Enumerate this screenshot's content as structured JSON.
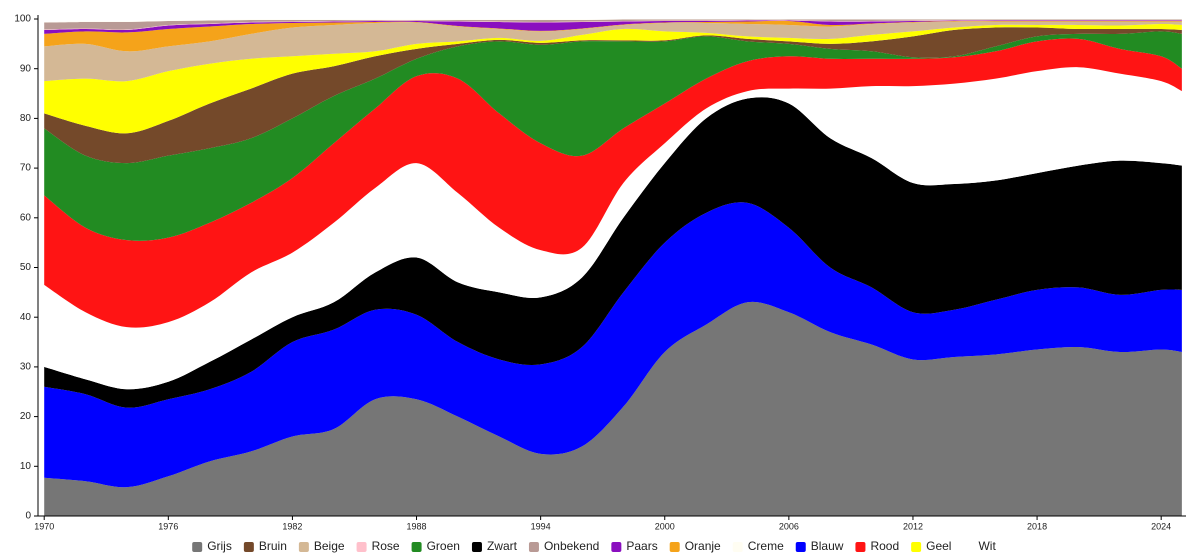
{
  "chart_data": {
    "type": "stacked-area",
    "x": [
      1970,
      1972,
      1974,
      1976,
      1978,
      1980,
      1982,
      1984,
      1986,
      1988,
      1990,
      1992,
      1994,
      1996,
      1998,
      2000,
      2002,
      2004,
      2006,
      2008,
      2010,
      2012,
      2014,
      2016,
      2018,
      2020,
      2022,
      2024,
      2025
    ],
    "xlim": [
      1969.7,
      2025.2
    ],
    "xticks": [
      1970,
      1976,
      1982,
      1988,
      1994,
      2000,
      2006,
      2012,
      2018,
      2024
    ],
    "ylim": [
      0,
      100
    ],
    "yticks": [
      0,
      10,
      20,
      30,
      40,
      50,
      60,
      70,
      80,
      90,
      100
    ],
    "grid": false,
    "legend": "bottom",
    "series": [
      {
        "name": "Grijs",
        "color": "#767676",
        "values": [
          7.7,
          7,
          5.8,
          8,
          11,
          13,
          16,
          17.5,
          23.5,
          23.5,
          20,
          16,
          12.5,
          14,
          22,
          33,
          38.5,
          43,
          41,
          37,
          34.5,
          31.5,
          32,
          32.5,
          33.5,
          34,
          33,
          33.5,
          33
        ]
      },
      {
        "name": "Bruin",
        "color": "#74492a",
        "values": [
          3,
          6,
          6,
          7,
          9,
          10,
          9,
          6,
          4.5,
          2,
          0.5,
          0.3,
          0.4,
          0.2,
          0.2,
          0.2,
          0.2,
          0.5,
          0.5,
          1,
          2,
          4.2,
          5.3,
          3.8,
          1.8,
          1,
          1,
          0.5,
          0.8
        ]
      },
      {
        "name": "Beige",
        "color": "#d4b895",
        "values": [
          7,
          7,
          6,
          5,
          4.5,
          5,
          5.8,
          5.8,
          5.7,
          4.3,
          3,
          1.8,
          1.9,
          1.2,
          0.8,
          1.7,
          2,
          2.5,
          2.6,
          2.5,
          2.2,
          1.8,
          1.2,
          0.7,
          0.7,
          0.7,
          0.8,
          0.5,
          0.7
        ]
      },
      {
        "name": "Rose",
        "color": "#ffc0cb",
        "values": [
          0.1,
          0.1,
          0.1,
          0.1,
          0.1,
          0.1,
          0.1,
          0.1,
          0.1,
          0.1,
          0.1,
          0.1,
          0.1,
          0.1,
          0.1,
          0.1,
          0.1,
          0.1,
          0.1,
          0.1,
          0.1,
          0.1,
          0.1,
          0.1,
          0.1,
          0.1,
          0.1,
          0.1,
          0.1
        ]
      },
      {
        "name": "Groen",
        "color": "#228b22",
        "values": [
          13.5,
          14.5,
          15.5,
          16.5,
          15,
          13,
          12,
          9.5,
          6,
          3.5,
          6.5,
          14.5,
          19.8,
          23,
          17.5,
          12.5,
          8.5,
          4,
          2.5,
          2,
          1.5,
          0.3,
          0.2,
          1,
          1,
          1,
          3,
          5,
          7
        ]
      },
      {
        "name": "Zwart",
        "color": "#000000",
        "values": [
          4,
          3,
          3.7,
          3.5,
          5.5,
          6.5,
          5,
          5.5,
          7.5,
          11.5,
          12,
          13.5,
          13.5,
          14,
          15,
          16,
          19,
          21,
          25,
          26,
          26,
          26,
          25.3,
          24,
          23.5,
          24.5,
          27,
          25.5,
          25
        ]
      },
      {
        "name": "Onbekend",
        "color": "#b99a95",
        "values": [
          1.4,
          1.3,
          1.5,
          0.8,
          0.6,
          0.4,
          0.3,
          0.2,
          0.1,
          0.1,
          0.2,
          0.3,
          0.4,
          0.3,
          0.3,
          0.2,
          0.2,
          0.1,
          0.1,
          0.3,
          0.3,
          0.2,
          0.1,
          0.1,
          0.1,
          0.1,
          0.1,
          0.1,
          0.1
        ]
      },
      {
        "name": "Paars",
        "color": "#8a0fbf",
        "values": [
          0.8,
          0.5,
          0.5,
          0.7,
          0.5,
          0.3,
          0.2,
          0.2,
          0.2,
          0.2,
          0.9,
          1.3,
          1.7,
          1.3,
          0.6,
          0.3,
          0.2,
          0.2,
          0.1,
          0.7,
          0.4,
          0.2,
          0.1,
          0.1,
          0.1,
          0.1,
          0.1,
          0.1,
          0.1
        ]
      },
      {
        "name": "Oranje",
        "color": "#f5a31a",
        "values": [
          2.5,
          2.5,
          3.8,
          3.5,
          3,
          2,
          0.9,
          0.5,
          0.2,
          0.1,
          0.1,
          0.1,
          0.1,
          0.1,
          0.1,
          0.1,
          0.2,
          0.5,
          0.8,
          0.3,
          0.1,
          0.1,
          0.1,
          0.1,
          0.1,
          0.1,
          0.1,
          0.1,
          0.1
        ]
      },
      {
        "name": "Creme",
        "color": "#fffdf2",
        "values": [
          0.1,
          0.1,
          0.1,
          0.1,
          0.1,
          0.1,
          0.1,
          0.1,
          0.1,
          0.1,
          0.1,
          0.1,
          0.1,
          0.1,
          0.1,
          0.1,
          0.1,
          0.1,
          0.1,
          0.1,
          0.1,
          0.1,
          0.1,
          0.1,
          0.1,
          0.1,
          0.1,
          0.1,
          0.1
        ]
      },
      {
        "name": "Blauw",
        "color": "#0000ff",
        "values": [
          18.3,
          17.5,
          16,
          15.5,
          14.5,
          16,
          19,
          20,
          18,
          17,
          15,
          15.5,
          18,
          20,
          23,
          22,
          22.5,
          20,
          17,
          13,
          11.5,
          9.5,
          9.5,
          11,
          12,
          12,
          11.5,
          12,
          12.5
        ]
      },
      {
        "name": "Rood",
        "color": "#ff1414",
        "values": [
          18,
          17,
          17.5,
          17,
          16,
          14,
          15,
          16,
          16,
          17.5,
          23,
          23,
          21.5,
          18.5,
          11,
          8,
          6,
          6,
          6.5,
          6,
          5.5,
          5.5,
          5.3,
          5.5,
          6,
          5.7,
          5,
          5,
          4.5
        ]
      },
      {
        "name": "Geel",
        "color": "#ffff00",
        "values": [
          6.5,
          9.5,
          10.5,
          10,
          8,
          6,
          3.5,
          2.5,
          1,
          1,
          0.5,
          0.4,
          0.4,
          1.1,
          2.3,
          1.8,
          0.5,
          0.5,
          0.7,
          1,
          1.3,
          1,
          0.5,
          0.5,
          0.5,
          0.8,
          0.7,
          1,
          1
        ]
      },
      {
        "name": "Wit",
        "color": "#ffffff",
        "values": [
          16.5,
          13.5,
          12.5,
          12,
          12,
          13.5,
          13,
          16,
          17,
          19,
          18,
          13,
          9.5,
          6,
          7,
          4,
          2,
          1.5,
          3,
          10,
          14.5,
          19.5,
          20.2,
          20.5,
          20.5,
          19.8,
          17.5,
          16.5,
          15
        ]
      }
    ]
  }
}
